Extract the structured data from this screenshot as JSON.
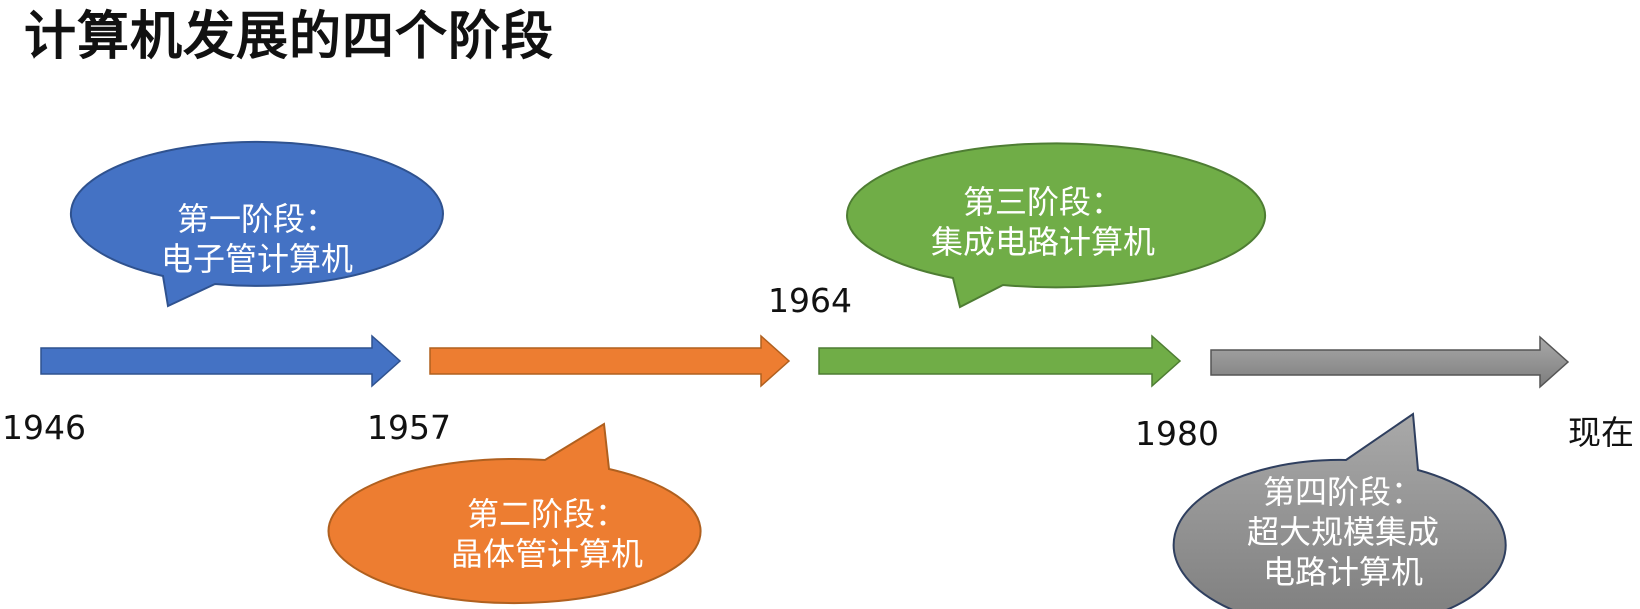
{
  "title": "计算机发展的四个阶段",
  "colors": {
    "stage1": "#4472C4",
    "stage2": "#ED7D31",
    "stage3": "#70AD47",
    "stage4": "#8C8C8C",
    "outline": "#3a5a8a"
  },
  "years": [
    "1946",
    "1957",
    "1964",
    "1980",
    "现在"
  ],
  "stages": [
    {
      "heading": "第一阶段：",
      "lines": [
        "电子管计算机"
      ]
    },
    {
      "heading": "第二阶段：",
      "lines": [
        "晶体管计算机"
      ]
    },
    {
      "heading": "第三阶段：",
      "lines": [
        "集成电路计算机"
      ]
    },
    {
      "heading": "第四阶段：",
      "lines": [
        "超大规模集成",
        "电路计算机"
      ]
    }
  ]
}
